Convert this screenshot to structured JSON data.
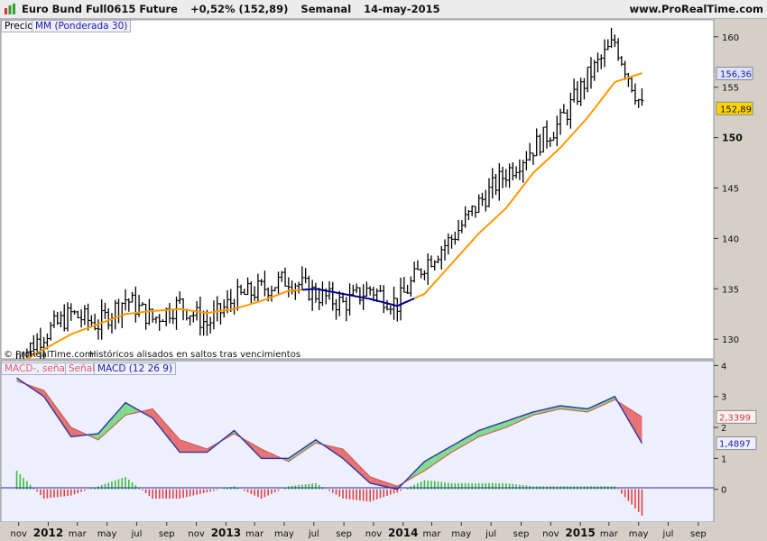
{
  "header": {
    "instrument": "Euro Bund Full0615 Future",
    "change": "+0,52% (152,89)",
    "period": "Semanal",
    "date": "14-may-2015",
    "site": "www.ProRealTime.com"
  },
  "price_panel": {
    "legend_price": "Precio",
    "legend_ma": "MM (Ponderada 30)",
    "footer_copy": "© ProRealTime.com",
    "footer_note": "Históricos alisados en saltos tras vencimientos",
    "ma_value_label": "156,36",
    "price_value_label": "152,89",
    "y_ticks": [
      "130",
      "135",
      "140",
      "145",
      "150",
      "155",
      "160"
    ]
  },
  "macd_panel": {
    "legend_hist": "MACD-, señal",
    "legend_signal": "Señal",
    "legend_macd": "MACD (12 26 9)",
    "signal_label": "2,3399",
    "macd_label": "1,4897",
    "hist_label": "-0,8502",
    "y_ticks": [
      "0",
      "1",
      "2",
      "3",
      "4"
    ]
  },
  "x_axis": {
    "ticks": [
      "nov",
      "2012",
      "mar",
      "may",
      "jul",
      "sep",
      "nov",
      "2013",
      "mar",
      "may",
      "jul",
      "sep",
      "nov",
      "2014",
      "mar",
      "may",
      "jul",
      "sep",
      "nov",
      "2015",
      "mar",
      "may",
      "jul",
      "sep"
    ]
  },
  "colors": {
    "ma_orange": "#ff9900",
    "ma_blue": "#00008b",
    "macd_line": "#3a3aa8",
    "signal_line": "#d06060",
    "fill_up": "#7edc8a",
    "fill_down": "#e87070",
    "hist_pos": "#38c038",
    "hist_neg": "#e04040",
    "ma_label_bg": "#dde4ff",
    "price_label_bg": "#ffd400"
  },
  "chart_data": {
    "type": "line",
    "price": {
      "x": [
        "2011-10-28",
        "2011-12-23",
        "2012-02-17",
        "2012-04-13",
        "2012-06-08",
        "2012-08-03",
        "2012-09-28",
        "2012-11-23",
        "2013-01-18",
        "2013-03-15",
        "2013-05-10",
        "2013-07-05",
        "2013-08-30",
        "2013-10-25",
        "2013-12-20",
        "2014-02-14",
        "2014-04-11",
        "2014-06-06",
        "2014-08-01",
        "2014-09-26",
        "2014-11-21",
        "2015-01-16",
        "2015-03-13",
        "2015-05-08"
      ],
      "close": [
        128.0,
        130.5,
        132.5,
        131.5,
        134.0,
        132.0,
        133.5,
        131.5,
        134.0,
        135.0,
        136.0,
        134.5,
        133.5,
        135.0,
        133.5,
        137.5,
        140.0,
        143.5,
        146.5,
        149.0,
        151.5,
        156.0,
        159.5,
        152.9
      ],
      "ma": [
        127.5,
        129.0,
        130.5,
        131.5,
        132.5,
        132.8,
        133.0,
        132.6,
        133.0,
        133.8,
        134.8,
        135.0,
        134.5,
        134.0,
        133.3,
        134.5,
        137.5,
        140.5,
        143.0,
        146.5,
        149.0,
        152.0,
        155.5,
        156.4
      ]
    },
    "macd": {
      "x": [
        "2011-10-28",
        "2011-12-23",
        "2012-02-17",
        "2012-04-13",
        "2012-06-08",
        "2012-08-03",
        "2012-09-28",
        "2012-11-23",
        "2013-01-18",
        "2013-03-15",
        "2013-05-10",
        "2013-07-05",
        "2013-08-30",
        "2013-10-25",
        "2013-12-20",
        "2014-02-14",
        "2014-04-11",
        "2014-06-06",
        "2014-08-01",
        "2014-09-26",
        "2014-11-21",
        "2015-01-16",
        "2015-03-13",
        "2015-05-08"
      ],
      "macd": [
        3.6,
        3.0,
        1.7,
        1.8,
        2.8,
        2.3,
        1.2,
        1.2,
        1.9,
        1.0,
        1.0,
        1.6,
        1.0,
        0.2,
        0.0,
        0.9,
        1.4,
        1.9,
        2.2,
        2.5,
        2.7,
        2.6,
        3.0,
        1.4897
      ],
      "signal": [
        3.5,
        3.2,
        2.0,
        1.6,
        2.4,
        2.6,
        1.6,
        1.3,
        1.8,
        1.3,
        0.9,
        1.5,
        1.3,
        0.4,
        0.1,
        0.6,
        1.2,
        1.7,
        2.0,
        2.4,
        2.6,
        2.5,
        2.9,
        2.3399
      ],
      "histogram": [
        0.6,
        -0.3,
        -0.2,
        0.1,
        0.4,
        -0.3,
        -0.3,
        -0.1,
        0.1,
        -0.3,
        0.1,
        0.2,
        -0.3,
        -0.4,
        -0.1,
        0.3,
        0.2,
        0.2,
        0.2,
        0.1,
        0.1,
        0.1,
        0.1,
        -0.8502
      ]
    },
    "ylim_price": [
      128.5,
      161.5
    ],
    "ylim_macd": [
      -1.0,
      4.1
    ],
    "grid": false
  }
}
